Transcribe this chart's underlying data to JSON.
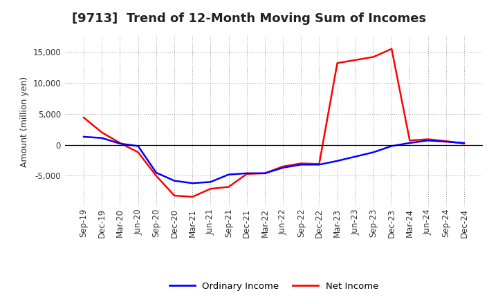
{
  "title": "[9713]  Trend of 12-Month Moving Sum of Incomes",
  "ylabel": "Amount (million yen)",
  "x_labels": [
    "Sep-19",
    "Dec-19",
    "Mar-20",
    "Jun-20",
    "Sep-20",
    "Dec-20",
    "Mar-21",
    "Jun-21",
    "Sep-21",
    "Dec-21",
    "Mar-22",
    "Jun-22",
    "Sep-22",
    "Dec-22",
    "Mar-23",
    "Jun-23",
    "Sep-23",
    "Dec-23",
    "Mar-24",
    "Jun-24",
    "Sep-24",
    "Dec-24"
  ],
  "ordinary_income": [
    1300,
    1100,
    200,
    -200,
    -4500,
    -5800,
    -6200,
    -6000,
    -4800,
    -4600,
    -4600,
    -3700,
    -3200,
    -3200,
    -2600,
    -1900,
    -1200,
    -200,
    300,
    700,
    500,
    300
  ],
  "net_income": [
    4400,
    2000,
    300,
    -1200,
    -5000,
    -8200,
    -8400,
    -7100,
    -6800,
    -4700,
    -4600,
    -3500,
    -3000,
    -3100,
    13200,
    13700,
    14200,
    15500,
    700,
    900,
    600,
    200
  ],
  "ordinary_income_color": "#0000ff",
  "net_income_color": "#ff0000",
  "ylim": [
    -10000,
    17500
  ],
  "yticks": [
    -5000,
    0,
    5000,
    10000,
    15000
  ],
  "background_color": "#ffffff",
  "plot_bg_color": "#ffffff",
  "grid_color": "#999999",
  "legend_labels": [
    "Ordinary Income",
    "Net Income"
  ],
  "line_width": 1.8,
  "title_fontsize": 13,
  "ylabel_fontsize": 9,
  "tick_fontsize": 8.5
}
